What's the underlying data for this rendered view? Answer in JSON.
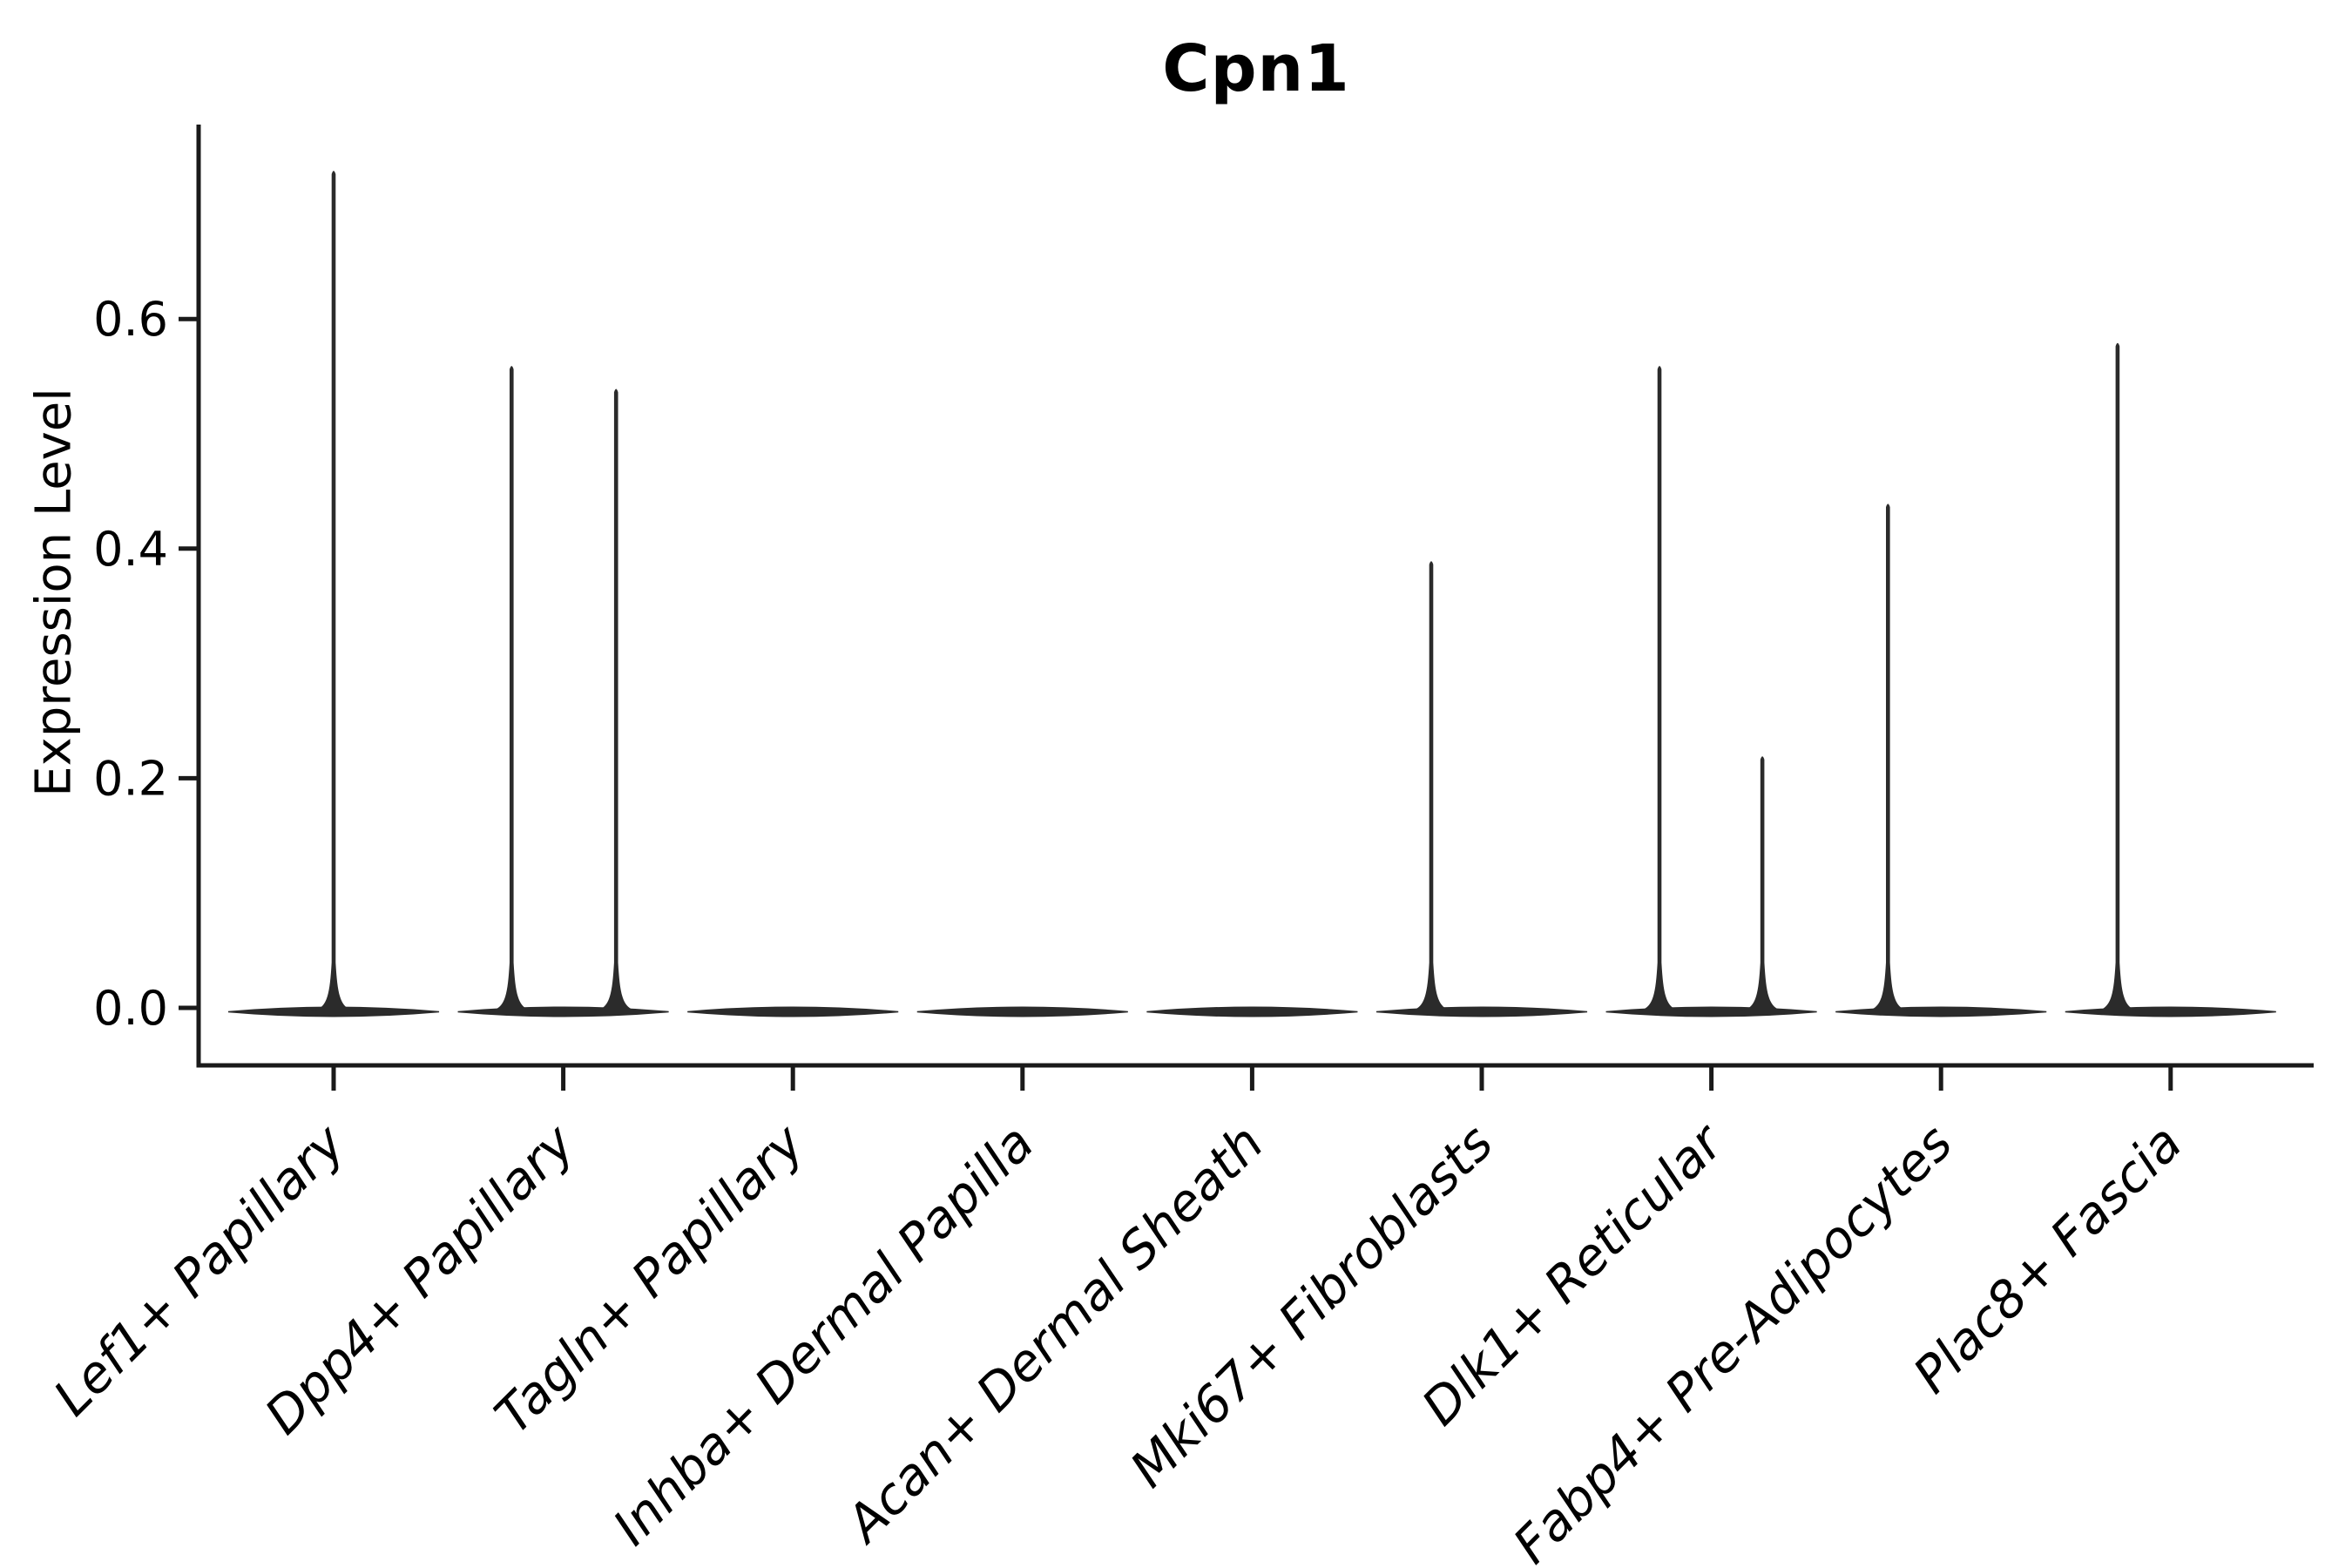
{
  "figure": {
    "title": "Cpn1",
    "background_color": "#ffffff"
  },
  "axes": {
    "ylabel": "Expression Level",
    "ytick_labels": [
      "0.0",
      "0.2",
      "0.4",
      "0.6"
    ],
    "x_tick_rotation_deg": 45
  },
  "style": {
    "violin_color": "#2b2b2b",
    "axis_color": "#1a1a1a",
    "text_color": "#000000"
  },
  "chart_data": {
    "type": "violin",
    "title": "Cpn1",
    "xlabel": "",
    "ylabel": "Expression Level",
    "ylim": [
      0,
      0.77
    ],
    "yticks": [
      0,
      0.2,
      0.4,
      0.6
    ],
    "ytick_labels": [
      "0.0",
      "0.2",
      "0.4",
      "0.6"
    ],
    "grid": false,
    "legend": false,
    "x_tick_rotation_deg": 45,
    "categories": [
      "Lef1+ Papillary",
      "Dpp4+ Papillary",
      "Tagln+ Papillary",
      "Inhba+ Dermal Papilla",
      "Acan+ Dermal Sheath",
      "Mki67+ Fibroblasts",
      "Dlk1+ Reticular",
      "Fabp4+ Pre-Adipocytes",
      "Plac8+ Fascia"
    ],
    "violins": [
      {
        "category": "Lef1+ Papillary",
        "bulk_at": 0.0,
        "spikes": [
          {
            "value": 0.73,
            "offset_frac": 0.0
          }
        ]
      },
      {
        "category": "Dpp4+ Papillary",
        "bulk_at": 0.0,
        "spikes": [
          {
            "value": 0.56,
            "offset_frac": -0.225
          },
          {
            "value": 0.54,
            "offset_frac": 0.23
          }
        ]
      },
      {
        "category": "Tagln+ Papillary",
        "bulk_at": 0.0,
        "spikes": []
      },
      {
        "category": "Inhba+ Dermal Papilla",
        "bulk_at": 0.0,
        "spikes": []
      },
      {
        "category": "Acan+ Dermal Sheath",
        "bulk_at": 0.0,
        "spikes": []
      },
      {
        "category": "Mki67+ Fibroblasts",
        "bulk_at": 0.0,
        "spikes": [
          {
            "value": 0.39,
            "offset_frac": -0.22
          }
        ]
      },
      {
        "category": "Dlk1+ Reticular",
        "bulk_at": 0.0,
        "spikes": [
          {
            "value": 0.56,
            "offset_frac": -0.226
          },
          {
            "value": 0.22,
            "offset_frac": 0.222
          }
        ]
      },
      {
        "category": "Fabp4+ Pre-Adipocytes",
        "bulk_at": 0.0,
        "spikes": [
          {
            "value": 0.44,
            "offset_frac": -0.231
          }
        ]
      },
      {
        "category": "Plac8+ Fascia",
        "bulk_at": 0.0,
        "spikes": [
          {
            "value": 0.58,
            "offset_frac": -0.231
          }
        ]
      }
    ]
  }
}
